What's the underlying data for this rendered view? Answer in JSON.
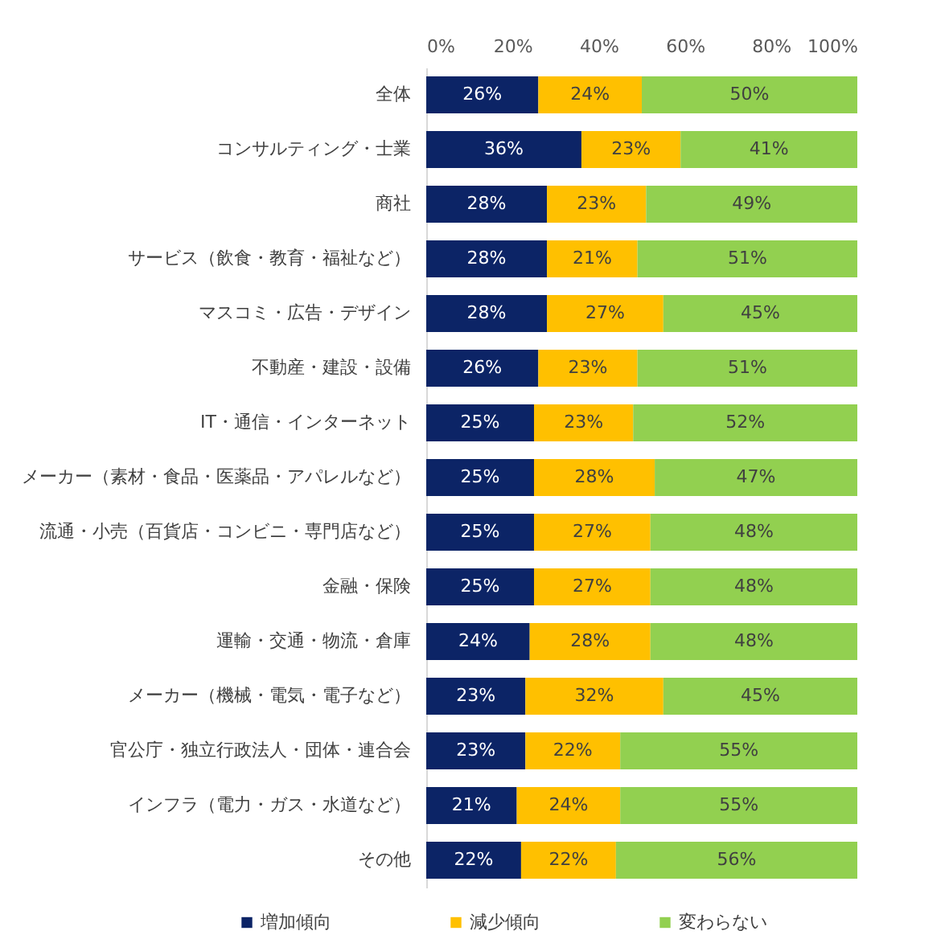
{
  "chart_data": {
    "type": "bar",
    "orientation": "horizontal",
    "stacked": true,
    "legend": "bottom",
    "categories": [
      "全体",
      "コンサルティング・士業",
      "商社",
      "サービス（飲食・教育・福祉など）",
      "マスコミ・広告・デザイン",
      "不動産・建設・設備",
      "IT・通信・インターネット",
      "メーカー（素材・食品・医薬品・アパレルなど）",
      "流通・小売（百貨店・コンビニ・専門店など）",
      "金融・保険",
      "運輸・交通・物流・倉庫",
      "メーカー（機械・電気・電子など）",
      "官公庁・独立行政法人・団体・連合会",
      "インフラ（電力・ガス・水道など）",
      "その他"
    ],
    "xlim": [
      0,
      100
    ],
    "xticks": [
      {
        "value": 0,
        "label": "0%"
      },
      {
        "value": 20,
        "label": "20%"
      },
      {
        "value": 40,
        "label": "40%"
      },
      {
        "value": 60,
        "label": "60%"
      },
      {
        "value": 80,
        "label": "80%"
      },
      {
        "value": 100,
        "label": "100%"
      }
    ],
    "series": [
      {
        "name": "増加傾向",
        "color": "#0c2466",
        "values": [
          26,
          36,
          28,
          28,
          28,
          26,
          25,
          25,
          25,
          25,
          24,
          23,
          23,
          21,
          22
        ],
        "value_labels": [
          "26%",
          "36%",
          "28%",
          "28%",
          "28%",
          "26%",
          "25%",
          "25%",
          "25%",
          "25%",
          "24%",
          "23%",
          "23%",
          "21%",
          "22%"
        ]
      },
      {
        "name": "減少傾向",
        "color": "#ffc000",
        "values": [
          24,
          23,
          23,
          21,
          27,
          23,
          23,
          28,
          27,
          27,
          28,
          32,
          22,
          24,
          22
        ],
        "value_labels": [
          "24%",
          "23%",
          "23%",
          "21%",
          "27%",
          "23%",
          "23%",
          "28%",
          "27%",
          "27%",
          "28%",
          "32%",
          "22%",
          "24%",
          "22%"
        ]
      },
      {
        "name": "変わらない",
        "color": "#92d050",
        "values": [
          50,
          41,
          49,
          51,
          45,
          51,
          52,
          47,
          48,
          48,
          48,
          45,
          55,
          55,
          56
        ],
        "value_labels": [
          "50%",
          "41%",
          "49%",
          "51%",
          "45%",
          "51%",
          "52%",
          "47%",
          "48%",
          "48%",
          "48%",
          "45%",
          "55%",
          "55%",
          "56%"
        ]
      }
    ]
  }
}
